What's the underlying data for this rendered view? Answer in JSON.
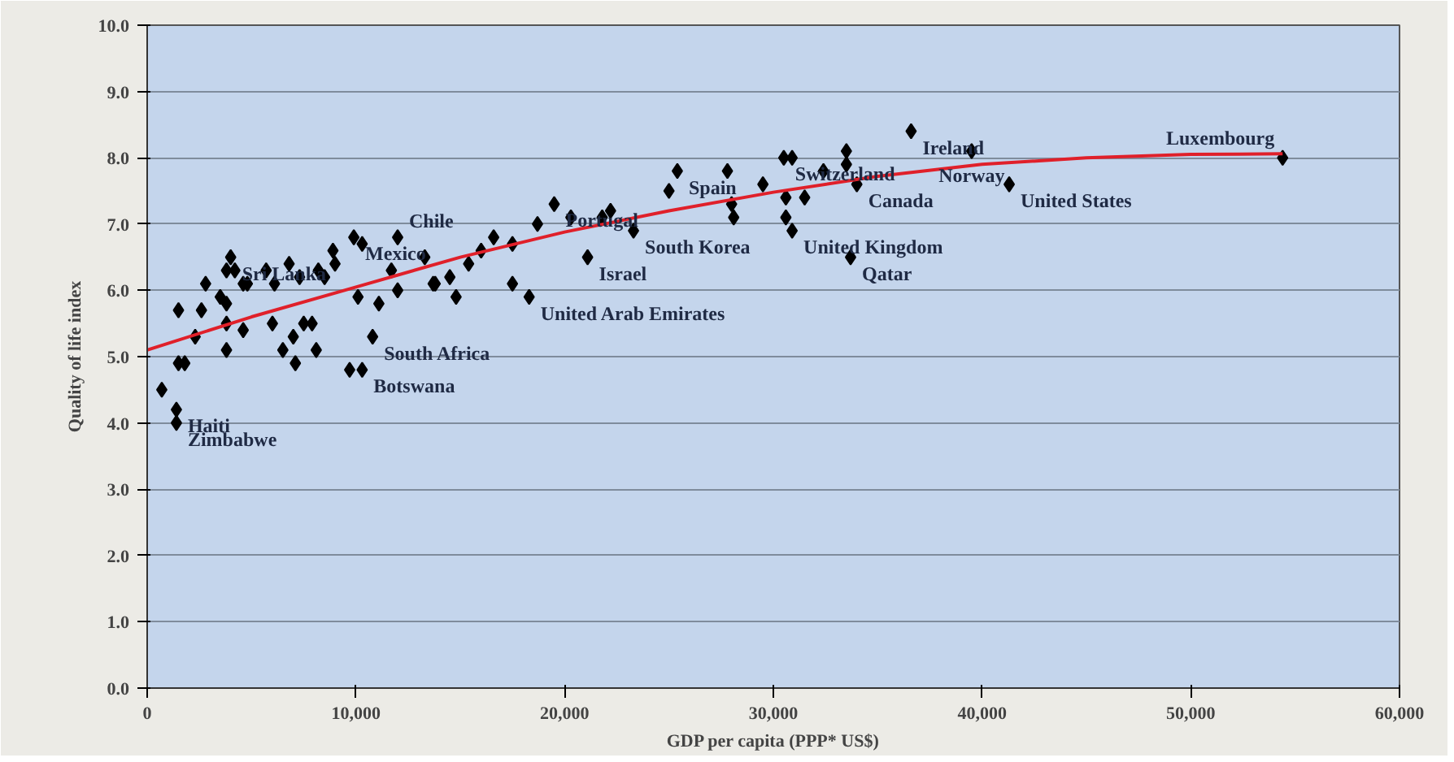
{
  "chart_data": {
    "type": "scatter",
    "xlabel": "GDP per capita (PPP* US$)",
    "ylabel": "Quality of life index",
    "xlim": [
      0,
      60000
    ],
    "xticks": [
      {
        "value": 0,
        "label": "0"
      },
      {
        "value": 10000,
        "label": "10,000"
      },
      {
        "value": 20000,
        "label": "20,000"
      },
      {
        "value": 30000,
        "label": "30,000"
      },
      {
        "value": 40000,
        "label": "40,000"
      },
      {
        "value": 50000,
        "label": "50,000"
      },
      {
        "value": 60000,
        "label": "60,000"
      }
    ],
    "ylim": [
      0,
      10
    ],
    "yticks": [
      {
        "value": 0,
        "label": "0.0"
      },
      {
        "value": 1,
        "label": "1.0"
      },
      {
        "value": 2,
        "label": "2.0"
      },
      {
        "value": 3,
        "label": "3.0"
      },
      {
        "value": 4,
        "label": "4.0"
      },
      {
        "value": 5,
        "label": "5.0"
      },
      {
        "value": 6,
        "label": "6.0"
      },
      {
        "value": 7,
        "label": "7.0"
      },
      {
        "value": 8,
        "label": "8.0"
      },
      {
        "value": 9,
        "label": "9.0"
      },
      {
        "value": 10,
        "label": "10.0"
      }
    ],
    "grid": "y",
    "series": [
      {
        "marker": "diamond",
        "color": "#000000",
        "x": [
          700,
          1400,
          1400,
          1500,
          1800,
          2300,
          2800,
          1500,
          2600,
          3500,
          3800,
          3800,
          4200,
          4000,
          4600,
          4800,
          3800,
          3800,
          4600,
          5700,
          6100,
          6800,
          7300,
          6000,
          6500,
          7000,
          7500,
          7900,
          8100,
          7100,
          8200,
          8500,
          8900,
          9000,
          9900,
          10300,
          10100,
          11100,
          12000,
          11700,
          12000,
          13300,
          13800,
          10800,
          9700,
          10300,
          19500,
          20300,
          18700,
          16600,
          16000,
          15400,
          14500,
          14800,
          13700,
          17500,
          17500,
          18300,
          21100,
          21800,
          22200,
          23300,
          25400,
          25000,
          27800,
          28000,
          28100,
          29500,
          30500,
          30900,
          30600,
          31500,
          30600,
          30900,
          32400,
          33500,
          33500,
          34000,
          33700,
          36600,
          39500,
          41300,
          54400
        ],
        "values": [
          4.5,
          4.2,
          4.0,
          4.9,
          4.9,
          5.3,
          6.1,
          5.7,
          5.7,
          5.9,
          5.8,
          6.3,
          6.3,
          6.5,
          6.1,
          6.1,
          5.5,
          5.1,
          5.4,
          6.3,
          6.1,
          6.4,
          6.2,
          5.5,
          5.1,
          5.3,
          5.5,
          5.5,
          5.1,
          4.9,
          6.3,
          6.2,
          6.6,
          6.4,
          6.8,
          6.7,
          5.9,
          5.8,
          6.8,
          6.3,
          6.0,
          6.5,
          6.1,
          5.3,
          4.8,
          4.8,
          7.3,
          7.1,
          7.0,
          6.8,
          6.6,
          6.4,
          6.2,
          5.9,
          6.1,
          6.7,
          6.1,
          5.9,
          6.5,
          7.1,
          7.2,
          6.9,
          7.8,
          7.5,
          7.8,
          7.3,
          7.1,
          7.6,
          8.0,
          8.0,
          7.4,
          7.4,
          7.1,
          6.9,
          7.8,
          8.1,
          7.9,
          7.6,
          6.5,
          8.4,
          8.1,
          7.6,
          8.0
        ]
      },
      {
        "type": "line",
        "color": "#e0202a",
        "x": [
          0,
          5000,
          10000,
          15000,
          20000,
          25000,
          30000,
          35000,
          40000,
          45000,
          50000,
          54400
        ],
        "values": [
          5.1,
          5.6,
          6.05,
          6.5,
          6.88,
          7.2,
          7.48,
          7.72,
          7.9,
          8.0,
          8.05,
          8.06
        ]
      }
    ],
    "annotations": [
      {
        "text": "Sri Lanka",
        "x": 4000,
        "y": 6.5
      },
      {
        "text": "Mexico",
        "x": 9900,
        "y": 6.8
      },
      {
        "text": "Chile",
        "x": 12000,
        "y": 6.8
      },
      {
        "text": "Portugal",
        "x": 19500,
        "y": 7.3
      },
      {
        "text": "Spain",
        "x": 25400,
        "y": 7.8
      },
      {
        "text": "Switzerland",
        "x": 30500,
        "y": 8.0
      },
      {
        "text": "Ireland",
        "x": 36600,
        "y": 8.4
      },
      {
        "text": "Norway",
        "x": 39500,
        "y": 8.1
      },
      {
        "text": "Luxembourg",
        "x": 54400,
        "y": 8.0
      },
      {
        "text": "United States",
        "x": 41300,
        "y": 7.6
      },
      {
        "text": "Canada",
        "x": 34000,
        "y": 7.6
      },
      {
        "text": "United Kingdom",
        "x": 30900,
        "y": 6.9
      },
      {
        "text": "Qatar",
        "x": 33700,
        "y": 6.5
      },
      {
        "text": "South Korea",
        "x": 23300,
        "y": 6.9
      },
      {
        "text": "Israel",
        "x": 21100,
        "y": 6.5
      },
      {
        "text": "United Arab Emirates",
        "x": 18300,
        "y": 5.9
      },
      {
        "text": "South Africa",
        "x": 10800,
        "y": 5.3
      },
      {
        "text": "Botswana",
        "x": 10300,
        "y": 4.8
      },
      {
        "text": "Haiti",
        "x": 1400,
        "y": 4.2
      },
      {
        "text": "Zimbabwe",
        "x": 1400,
        "y": 4.0
      }
    ]
  }
}
